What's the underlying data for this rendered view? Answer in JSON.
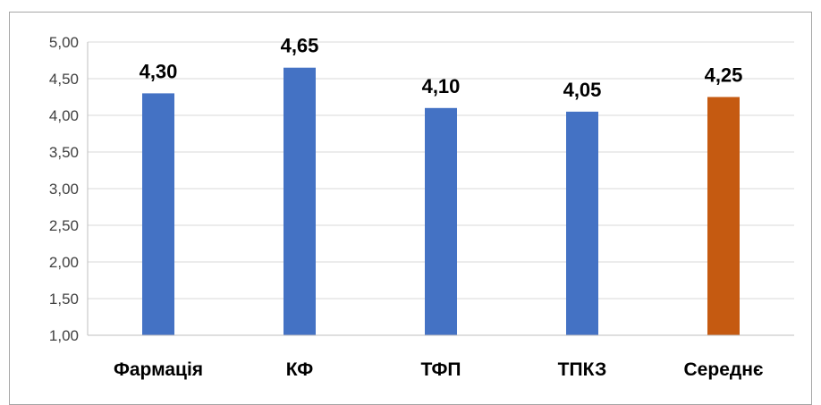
{
  "chart_data": {
    "type": "bar",
    "title": "",
    "xlabel": "",
    "ylabel": "",
    "categories": [
      "Фармація",
      "КФ",
      "ТФП",
      "ТПКЗ",
      "Середнє"
    ],
    "values": [
      4.3,
      4.65,
      4.1,
      4.05,
      4.25
    ],
    "data_labels": [
      "4,30",
      "4,65",
      "4,10",
      "4,05",
      "4,25"
    ],
    "ylim": [
      1.0,
      5.0
    ],
    "yticks": [
      1.0,
      1.5,
      2.0,
      2.5,
      3.0,
      3.5,
      4.0,
      4.5,
      5.0
    ],
    "ytick_labels": [
      "1,00",
      "1,50",
      "2,00",
      "2,50",
      "3,00",
      "3,50",
      "4,00",
      "4,50",
      "5,00"
    ],
    "bar_colors": [
      "#4472c4",
      "#4472c4",
      "#4472c4",
      "#4472c4",
      "#c55a11"
    ],
    "gridlines": true,
    "legend": "none"
  }
}
